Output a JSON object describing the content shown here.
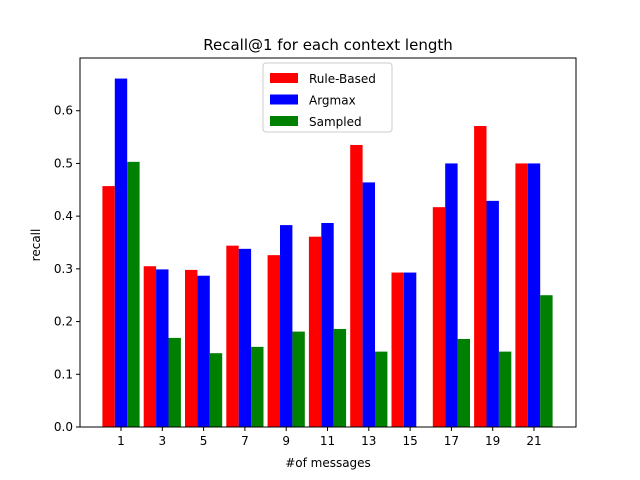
{
  "chart_data": {
    "type": "bar",
    "title": "Recall@1 for each context length",
    "xlabel": "#of messages",
    "ylabel": "recall",
    "categories": [
      "1",
      "3",
      "5",
      "7",
      "9",
      "11",
      "13",
      "15",
      "17",
      "19",
      "21"
    ],
    "series": [
      {
        "name": "Rule-Based",
        "color": "#ff0000",
        "values": [
          0.457,
          0.305,
          0.298,
          0.344,
          0.326,
          0.361,
          0.535,
          0.293,
          0.417,
          0.571,
          0.5
        ]
      },
      {
        "name": "Argmax",
        "color": "#0000ff",
        "values": [
          0.661,
          0.299,
          0.287,
          0.338,
          0.383,
          0.387,
          0.464,
          0.293,
          0.5,
          0.429,
          0.5
        ]
      },
      {
        "name": "Sampled",
        "color": "#008000",
        "values": [
          0.503,
          0.169,
          0.14,
          0.152,
          0.181,
          0.186,
          0.143,
          0.0,
          0.167,
          0.143,
          0.25
        ]
      }
    ],
    "ylim": [
      0,
      0.7
    ],
    "yticks": [
      "0.0",
      "0.1",
      "0.2",
      "0.3",
      "0.4",
      "0.5",
      "0.6"
    ],
    "legend_position": "top-center",
    "grid": false
  }
}
